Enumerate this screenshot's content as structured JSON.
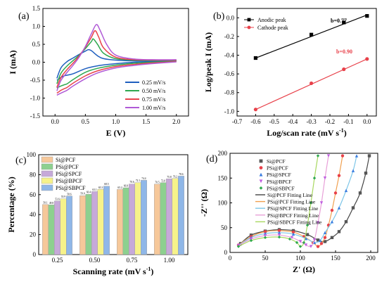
{
  "chart_data": [
    {
      "panel": "(a)",
      "type": "line",
      "xlabel": "E (V)",
      "ylabel": "I (mA)",
      "xlim": [
        -0.2,
        2.2
      ],
      "ylim": [
        -1.5,
        1.5
      ],
      "xticks": [
        0.0,
        0.5,
        1.0,
        1.5,
        2.0
      ],
      "yticks": [
        -1.5,
        -1.0,
        -0.5,
        0.0,
        0.5,
        1.0,
        1.5
      ],
      "legend_position": "bottom-right",
      "colors": [
        "#1f5fbf",
        "#2fa84f",
        "#e8414a",
        "#b05ad6"
      ],
      "series": [
        {
          "name": "0.25 mV/s",
          "anodic": {
            "x": [
              0.03,
              0.1,
              0.2,
              0.3,
              0.4,
              0.5,
              0.55,
              0.6,
              0.7,
              0.8,
              1.0,
              1.3,
              1.6,
              2.0
            ],
            "y": [
              -0.45,
              -0.15,
              0.02,
              0.12,
              0.22,
              0.31,
              0.35,
              0.32,
              0.18,
              0.1,
              0.06,
              0.04,
              0.04,
              0.05
            ]
          },
          "cathodic": {
            "x": [
              2.0,
              1.6,
              1.3,
              1.0,
              0.7,
              0.5,
              0.3,
              0.2,
              0.15,
              0.1,
              0.05,
              0.03
            ],
            "y": [
              0.04,
              0.02,
              0.0,
              -0.04,
              -0.1,
              -0.18,
              -0.32,
              -0.36,
              -0.38,
              -0.42,
              -0.48,
              -0.5
            ]
          }
        },
        {
          "name": "0.50 mV/s",
          "anodic": {
            "x": [
              0.03,
              0.1,
              0.2,
              0.3,
              0.4,
              0.5,
              0.6,
              0.63,
              0.7,
              0.8,
              1.0,
              1.3,
              1.6,
              2.0
            ],
            "y": [
              -0.6,
              -0.3,
              -0.1,
              0.05,
              0.2,
              0.38,
              0.58,
              0.65,
              0.5,
              0.25,
              0.1,
              0.06,
              0.05,
              0.06
            ]
          },
          "cathodic": {
            "x": [
              2.0,
              1.6,
              1.3,
              1.0,
              0.7,
              0.5,
              0.3,
              0.2,
              0.15,
              0.1,
              0.05,
              0.03
            ],
            "y": [
              0.03,
              0.0,
              -0.03,
              -0.08,
              -0.17,
              -0.28,
              -0.48,
              -0.6,
              -0.63,
              -0.66,
              -0.7,
              -0.72
            ]
          }
        },
        {
          "name": "0.75 mV/s",
          "anodic": {
            "x": [
              0.03,
              0.1,
              0.2,
              0.3,
              0.4,
              0.5,
              0.6,
              0.66,
              0.72,
              0.8,
              1.0,
              1.3,
              1.6,
              2.0
            ],
            "y": [
              -0.7,
              -0.42,
              -0.2,
              -0.02,
              0.18,
              0.42,
              0.7,
              0.88,
              0.7,
              0.4,
              0.14,
              0.07,
              0.06,
              0.06
            ]
          },
          "cathodic": {
            "x": [
              2.0,
              1.6,
              1.3,
              1.0,
              0.7,
              0.5,
              0.3,
              0.2,
              0.15,
              0.1,
              0.05,
              0.03
            ],
            "y": [
              0.02,
              -0.02,
              -0.06,
              -0.12,
              -0.24,
              -0.38,
              -0.58,
              -0.7,
              -0.74,
              -0.78,
              -0.84,
              -0.86
            ]
          }
        },
        {
          "name": "1.00 mV/s",
          "anodic": {
            "x": [
              0.03,
              0.1,
              0.2,
              0.3,
              0.4,
              0.5,
              0.6,
              0.68,
              0.74,
              0.85,
              1.0,
              1.3,
              1.6,
              2.0
            ],
            "y": [
              -0.8,
              -0.5,
              -0.28,
              -0.08,
              0.15,
              0.44,
              0.8,
              1.05,
              0.9,
              0.5,
              0.2,
              0.09,
              0.07,
              0.07
            ]
          },
          "cathodic": {
            "x": [
              2.0,
              1.6,
              1.3,
              1.0,
              0.7,
              0.5,
              0.3,
              0.2,
              0.15,
              0.1,
              0.05,
              0.03
            ],
            "y": [
              0.01,
              -0.04,
              -0.09,
              -0.16,
              -0.3,
              -0.46,
              -0.66,
              -0.78,
              -0.82,
              -0.86,
              -0.9,
              -0.92
            ]
          }
        }
      ]
    },
    {
      "panel": "(b)",
      "type": "scatter",
      "xlabel": "Log/scan rate (mV s-1)",
      "xlabel_main": "Log/scan rate (mV s",
      "xlabel_sup": "-1",
      "xlabel_tail": ")",
      "ylabel": "Log/peak I (mA)",
      "xlim": [
        -0.7,
        0.05
      ],
      "ylim": [
        -1.05,
        0.1
      ],
      "xticks": [
        -0.7,
        -0.6,
        -0.5,
        -0.4,
        -0.3,
        -0.2,
        -0.1,
        0.0
      ],
      "yticks": [
        -1.0,
        -0.8,
        -0.6,
        -0.4,
        -0.2,
        0.0
      ],
      "legend_position": "top-left",
      "series": [
        {
          "name": "Anodic peak",
          "marker": "square",
          "color": "#000000",
          "x": [
            -0.6,
            -0.3,
            -0.125,
            0.0
          ],
          "y": [
            -0.43,
            -0.18,
            -0.05,
            0.02
          ],
          "fit": {
            "x": [
              -0.6,
              0.0
            ],
            "y": [
              -0.43,
              0.03
            ]
          },
          "annotation": "b=0.77"
        },
        {
          "name": "Cathode peak",
          "marker": "circle",
          "color": "#e8414a",
          "x": [
            -0.6,
            -0.3,
            -0.125,
            0.0
          ],
          "y": [
            -0.98,
            -0.7,
            -0.55,
            -0.44
          ],
          "fit": {
            "x": [
              -0.6,
              0.0
            ],
            "y": [
              -0.98,
              -0.44
            ]
          },
          "annotation": "b=0.90"
        }
      ]
    },
    {
      "panel": "(c)",
      "type": "bar",
      "xlabel": "Scanning rate (mV s-1)",
      "xlabel_main": "Scanning rate (mV s",
      "xlabel_sup": "-1",
      "xlabel_tail": ")",
      "ylabel": "Percentage (%)",
      "ylim": [
        0,
        100
      ],
      "yticks": [
        0,
        20,
        40,
        60,
        80,
        100
      ],
      "categories": [
        "0.25",
        "0.50",
        "0.75",
        "1.00"
      ],
      "legend_position": "top-left",
      "series": [
        {
          "name": "Si@PCF",
          "color": "#f6c89a",
          "values": [
            50.1,
            59.0,
            65.2,
            70.5
          ]
        },
        {
          "name": "PSi@PCF",
          "color": "#8dd08f",
          "values": [
            49.8,
            60.4,
            66.9,
            72.0
          ]
        },
        {
          "name": "PSi@SPCF",
          "color": "#c6a9d9",
          "values": [
            53.6,
            63.1,
            70.6,
            75.8
          ]
        },
        {
          "name": "PSi@BPCF",
          "color": "#f6f28a",
          "values": [
            55.9,
            65.3,
            72.1,
            76.2
          ]
        },
        {
          "name": "PSi@SBPCF",
          "color": "#8fb7e8",
          "values": [
            58.6,
            68.5,
            74.4,
            78.6
          ]
        }
      ]
    },
    {
      "panel": "(d)",
      "type": "scatter",
      "xlabel": "Z' (Ω)",
      "ylabel": "-Z'' (Ω)",
      "xlim": [
        0,
        210
      ],
      "ylim": [
        0,
        200
      ],
      "xticks": [
        0,
        50,
        100,
        150,
        200
      ],
      "yticks": [
        0,
        50,
        100,
        150,
        200
      ],
      "legend_position": "top-right",
      "series": [
        {
          "name": "Si@PCF",
          "marker": "square",
          "color": "#555555",
          "fit_name": "Si@PCF Fitting Line",
          "fit_color": "#444444",
          "x": [
            15,
            30,
            50,
            70,
            90,
            110,
            125,
            135,
            145,
            155,
            165,
            175,
            185,
            193,
            198
          ],
          "y": [
            18,
            35,
            43,
            46,
            44,
            36,
            25,
            22,
            30,
            42,
            62,
            90,
            120,
            160,
            195
          ]
        },
        {
          "name": "PSi@PCF",
          "marker": "circle",
          "color": "#e8414a",
          "fit_name": "PSi@PCF Fitting Line",
          "fit_color": "#f0a050",
          "x": [
            12,
            30,
            50,
            70,
            90,
            105,
            118,
            125,
            130,
            135,
            140,
            145,
            150,
            155,
            160
          ],
          "y": [
            15,
            32,
            42,
            44,
            41,
            32,
            20,
            12,
            18,
            30,
            55,
            85,
            120,
            155,
            195
          ]
        },
        {
          "name": "PSi@SPCF",
          "marker": "triangle",
          "color": "#3a7de0",
          "fit_name": "PSi@SPCF Fitting Line",
          "fit_color": "#7ec6e8",
          "x": [
            14,
            30,
            50,
            70,
            90,
            108,
            120,
            128,
            135,
            145,
            155,
            165,
            175,
            180
          ],
          "y": [
            16,
            30,
            38,
            40,
            37,
            28,
            20,
            24,
            40,
            62,
            90,
            125,
            165,
            195
          ]
        },
        {
          "name": "PSi@BPCF",
          "marker": "triangle-down",
          "color": "#c060e0",
          "fit_name": "PSi@BPCF Fitting Line",
          "fit_color": "#e8a0d8",
          "x": [
            12,
            30,
            50,
            70,
            88,
            100,
            108,
            115,
            120,
            125,
            130,
            135,
            140
          ],
          "y": [
            14,
            27,
            34,
            35,
            30,
            22,
            15,
            12,
            25,
            60,
            100,
            150,
            195
          ]
        },
        {
          "name": "PSi@SBPCF",
          "marker": "diamond",
          "color": "#2fa84f",
          "fit_name": "PSi@SBPCF Fitting Line",
          "fit_color": "#a8d860",
          "x": [
            12,
            30,
            50,
            70,
            85,
            95,
            100,
            105,
            110,
            115,
            120,
            125
          ],
          "y": [
            12,
            24,
            30,
            31,
            27,
            20,
            12,
            20,
            55,
            100,
            150,
            195
          ]
        }
      ]
    }
  ]
}
